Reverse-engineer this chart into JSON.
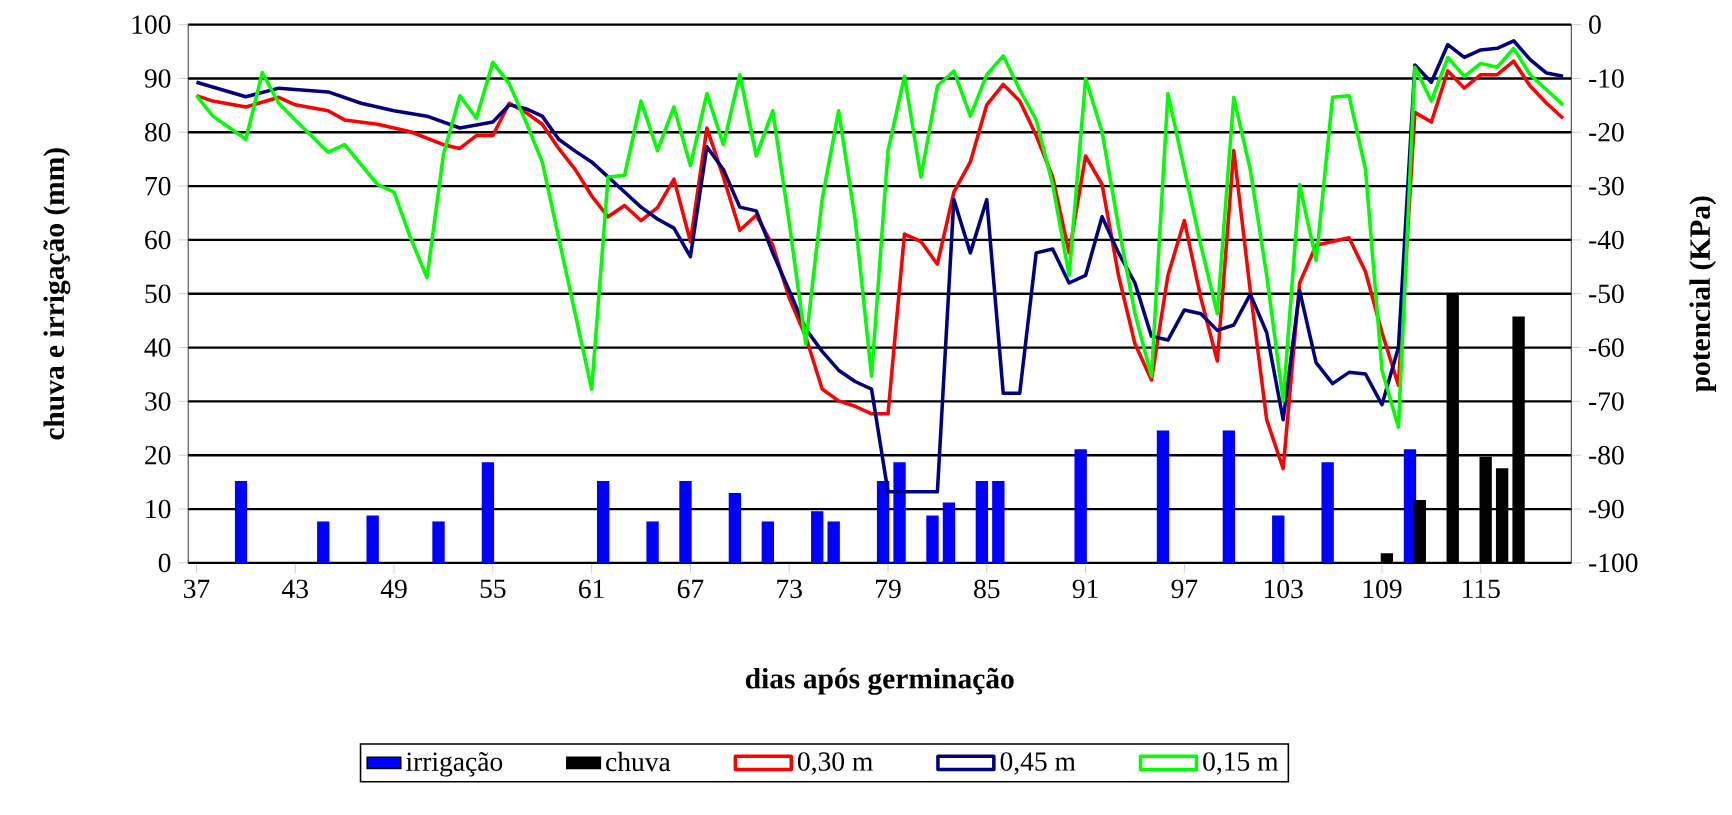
{
  "chart_data": {
    "type": "bar",
    "xlabel": "dias após germinação",
    "ylabel": "chuva e irrigação (mm)",
    "y2label": "potencial (KPa)",
    "xlim": [
      36.5,
      120.5
    ],
    "xticks": [
      37,
      43,
      49,
      55,
      61,
      67,
      73,
      79,
      85,
      91,
      97,
      103,
      109,
      115
    ],
    "ylim": [
      0,
      100
    ],
    "yticks": [
      0,
      10,
      20,
      30,
      40,
      50,
      60,
      70,
      80,
      90,
      100
    ],
    "y2lim": [
      -100,
      0
    ],
    "y2ticks": [
      -100,
      -90,
      -80,
      -70,
      -60,
      -50,
      -40,
      -30,
      -20,
      -10,
      0
    ],
    "grid": "y",
    "legend": "bottom",
    "marker": "none",
    "series": [
      {
        "name": "irrigação",
        "color": "#0000ff",
        "x": [
          40,
          45,
          48,
          52,
          55,
          62,
          65,
          67,
          70,
          72,
          75,
          76,
          79,
          80,
          82,
          83,
          85,
          86,
          91,
          96,
          100,
          103,
          106,
          111
        ],
        "values": [
          15.2,
          7.7,
          8.8,
          7.7,
          18.7,
          15.2,
          7.7,
          15.2,
          13,
          7.7,
          9.6,
          7.7,
          15.2,
          18.7,
          8.8,
          11.2,
          15.2,
          15.2,
          21.1,
          24.6,
          24.6,
          8.8,
          18.7,
          21.1
        ]
      },
      {
        "name": "chuva",
        "color": "#000000",
        "x": [
          109,
          111,
          113,
          115,
          116,
          117
        ],
        "values": [
          1.8,
          11.7,
          50,
          19.7,
          17.6,
          45.8
        ]
      },
      {
        "name": "0,30 m",
        "type": "line",
        "axis": "y2",
        "color": "#ff0000",
        "x": [
          37,
          38,
          40,
          42,
          43,
          45,
          46,
          48,
          50,
          52,
          53,
          54,
          55,
          56,
          57,
          58,
          59,
          60,
          61,
          62,
          63,
          64,
          65,
          66,
          67,
          68,
          69,
          70,
          71,
          72,
          73,
          74,
          75,
          76,
          77,
          78,
          79,
          80,
          81,
          82,
          83,
          84,
          85,
          86,
          87,
          88,
          89,
          90,
          91,
          92,
          93,
          94,
          95,
          96,
          97,
          98,
          99,
          100,
          101,
          102,
          103,
          104,
          105,
          106,
          107,
          108,
          109,
          110,
          111,
          112,
          113,
          114,
          115,
          116,
          117,
          118,
          119,
          120
        ],
        "values": [
          -13.2,
          -14.2,
          -15.3,
          -13.5,
          -14.9,
          -16,
          -17.7,
          -18.5,
          -19.9,
          -22.3,
          -23,
          -20.6,
          -20.6,
          -14.6,
          -16.3,
          -18.5,
          -23,
          -26.9,
          -31.8,
          -35.7,
          -33.6,
          -36.4,
          -34,
          -28.7,
          -40.3,
          -19.2,
          -28.3,
          -38.2,
          -35.4,
          -41,
          -50.8,
          -57.9,
          -67.7,
          -69.9,
          -70.9,
          -72.3,
          -72.3,
          -38.9,
          -40.3,
          -44.5,
          -31.1,
          -25.5,
          -14.9,
          -11.1,
          -14.2,
          -20.6,
          -28.3,
          -42.4,
          -24.4,
          -29.7,
          -46.6,
          -59.3,
          -66,
          -46.6,
          -36.4,
          -50.8,
          -62.5,
          -23.4,
          -49.4,
          -73.4,
          -82.5,
          -48,
          -41,
          -40.3,
          -39.6,
          -45.9,
          -57.2,
          -67,
          -16.3,
          -18.1,
          -8.6,
          -11.8,
          -9.3,
          -9.3,
          -6.8,
          -11.4,
          -14.6,
          -17.4
        ]
      },
      {
        "name": "0,45 m",
        "type": "line",
        "axis": "y2",
        "color": "#000080",
        "x": [
          37,
          40,
          42,
          45,
          47,
          49,
          51,
          53,
          55,
          56,
          57,
          58,
          59,
          60,
          61,
          62,
          63,
          64,
          65,
          66,
          67,
          68,
          69,
          70,
          71,
          72,
          73,
          74,
          75,
          76,
          77,
          78,
          79,
          80,
          81,
          82,
          83,
          84,
          85,
          86,
          87,
          88,
          89,
          90,
          91,
          92,
          93,
          94,
          95,
          96,
          97,
          98,
          99,
          100,
          101,
          102,
          103,
          104,
          105,
          106,
          107,
          108,
          109,
          110,
          111,
          112,
          113,
          114,
          115,
          116,
          117,
          118,
          119,
          120
        ],
        "values": [
          -10.7,
          -13.4,
          -11.8,
          -12.5,
          -14.6,
          -16,
          -17,
          -19.2,
          -18.1,
          -14.9,
          -15.6,
          -17,
          -21.3,
          -23.5,
          -25.5,
          -28.3,
          -31.1,
          -33.9,
          -36.1,
          -37.8,
          -43.1,
          -22.7,
          -26.9,
          -33.9,
          -34.6,
          -42.4,
          -49.4,
          -56.5,
          -60.7,
          -64.2,
          -66.3,
          -67.7,
          -86.8,
          -86.8,
          -86.8,
          -86.8,
          -32.5,
          -42.4,
          -32.5,
          -68.5,
          -68.5,
          -42.4,
          -41.7,
          -48,
          -46.6,
          -35.7,
          -42.4,
          -48,
          -57.9,
          -58.6,
          -53,
          -53.7,
          -56.8,
          -55.8,
          -50.1,
          -57.2,
          -73.4,
          -49.4,
          -62.8,
          -66.7,
          -64.6,
          -64.9,
          -70.6,
          -60,
          -7.5,
          -10.7,
          -3.7,
          -6.1,
          -4.7,
          -4.4,
          -3,
          -6.5,
          -9,
          -9.6
        ]
      },
      {
        "name": "0,15 m",
        "type": "line",
        "axis": "y2",
        "color": "#00ff00",
        "x": [
          37,
          38,
          40,
          41,
          42,
          43,
          45,
          46,
          48,
          49,
          50,
          51,
          52,
          53,
          54,
          55,
          56,
          57,
          58,
          59,
          60,
          61,
          62,
          63,
          64,
          65,
          66,
          67,
          68,
          69,
          70,
          71,
          72,
          73,
          74,
          75,
          76,
          77,
          78,
          79,
          80,
          81,
          82,
          83,
          84,
          85,
          86,
          87,
          88,
          89,
          90,
          91,
          92,
          93,
          94,
          95,
          96,
          97,
          98,
          99,
          100,
          101,
          102,
          103,
          104,
          105,
          106,
          107,
          108,
          109,
          110,
          111,
          112,
          113,
          114,
          115,
          116,
          117,
          118,
          119,
          120
        ],
        "values": [
          -13.2,
          -17,
          -21.3,
          -8.9,
          -14.6,
          -17.7,
          -23.7,
          -22.3,
          -29.7,
          -31.1,
          -39.6,
          -47,
          -24.1,
          -13.2,
          -17.4,
          -7,
          -11,
          -18,
          -25.5,
          -39.6,
          -53.7,
          -67.7,
          -28.3,
          -28,
          -14.2,
          -23.4,
          -15.3,
          -26.2,
          -12.8,
          -22.3,
          -9.3,
          -24.4,
          -16,
          -36.8,
          -59.3,
          -32.5,
          -16,
          -36.1,
          -65.3,
          -23.4,
          -9.6,
          -28.3,
          -11.4,
          -8.6,
          -17,
          -9.3,
          -5.8,
          -12.1,
          -17.7,
          -29.7,
          -46.6,
          -10,
          -19.9,
          -37.5,
          -53.7,
          -65.3,
          -12.8,
          -26.9,
          -41,
          -53.7,
          -13.5,
          -26.9,
          -46.6,
          -69.9,
          -29.7,
          -43.8,
          -13.5,
          -13.2,
          -26.9,
          -64.2,
          -74.8,
          -7.9,
          -14.2,
          -6.1,
          -9.6,
          -7.2,
          -7.9,
          -4.4,
          -9.3,
          -12.1,
          -14.9
        ]
      }
    ]
  }
}
